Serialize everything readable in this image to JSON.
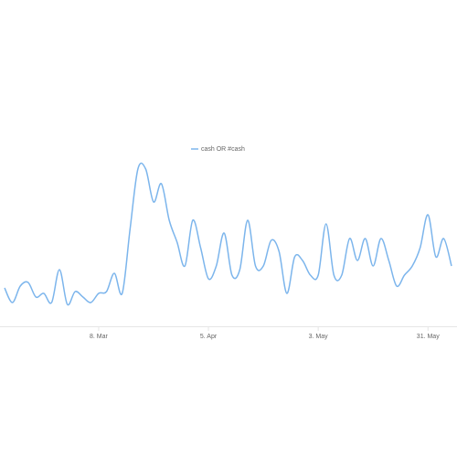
{
  "chart_data": {
    "type": "line",
    "categories": [
      null,
      null,
      null,
      null,
      null,
      null,
      null,
      null,
      null,
      null,
      null,
      null,
      "8. Mar",
      null,
      null,
      null,
      null,
      null,
      null,
      null,
      null,
      null,
      null,
      null,
      null,
      null,
      "5. Apr",
      null,
      null,
      null,
      null,
      null,
      null,
      null,
      null,
      null,
      null,
      null,
      null,
      null,
      "3. May",
      null,
      null,
      null,
      null,
      null,
      null,
      null,
      null,
      null,
      null,
      null,
      null,
      null,
      "31. May",
      null,
      null,
      null
    ],
    "series": [
      {
        "name": "cash OR #cash",
        "color": "#7cb5ec",
        "values": [
          21,
          13,
          22,
          24,
          16,
          18,
          13,
          31,
          12,
          19,
          16,
          13,
          18,
          19,
          29,
          18,
          53,
          86,
          86,
          68,
          78,
          58,
          46,
          33,
          58,
          43,
          26,
          33,
          51,
          28,
          31,
          58,
          33,
          33,
          47,
          41,
          18,
          38,
          36,
          28,
          28,
          56,
          28,
          28,
          48,
          36,
          48,
          33,
          48,
          36,
          22,
          28,
          33,
          43,
          61,
          38,
          48,
          33
        ]
      }
    ],
    "ylim": [
      0,
      100
    ],
    "legend": "top"
  }
}
